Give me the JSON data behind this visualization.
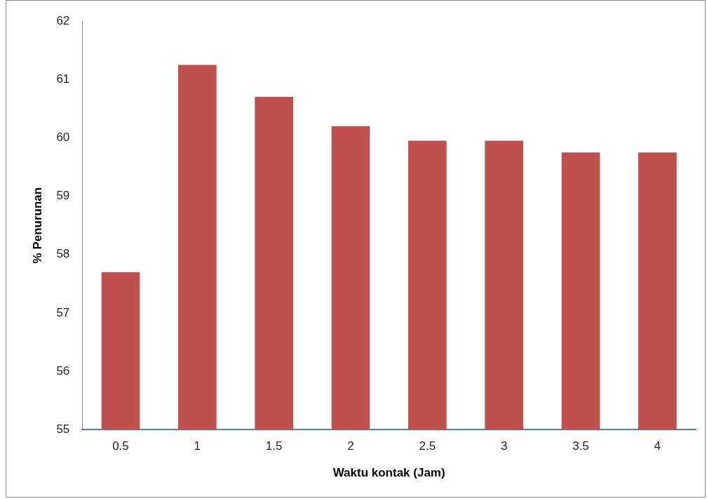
{
  "chart_data": {
    "type": "bar",
    "xlabel": "Waktu kontak (Jam)",
    "ylabel": "% Penurunan",
    "categories": [
      "0.5",
      "1",
      "1.5",
      "2",
      "2.5",
      "3",
      "3.5",
      "4"
    ],
    "values": [
      57.7,
      61.25,
      60.7,
      60.2,
      59.95,
      59.95,
      59.75,
      59.75
    ],
    "color": "#c0504d",
    "ylim": [
      55,
      62
    ],
    "yticks": [
      55,
      56,
      57,
      58,
      59,
      60,
      61,
      62
    ],
    "grid": false,
    "legend": false
  }
}
